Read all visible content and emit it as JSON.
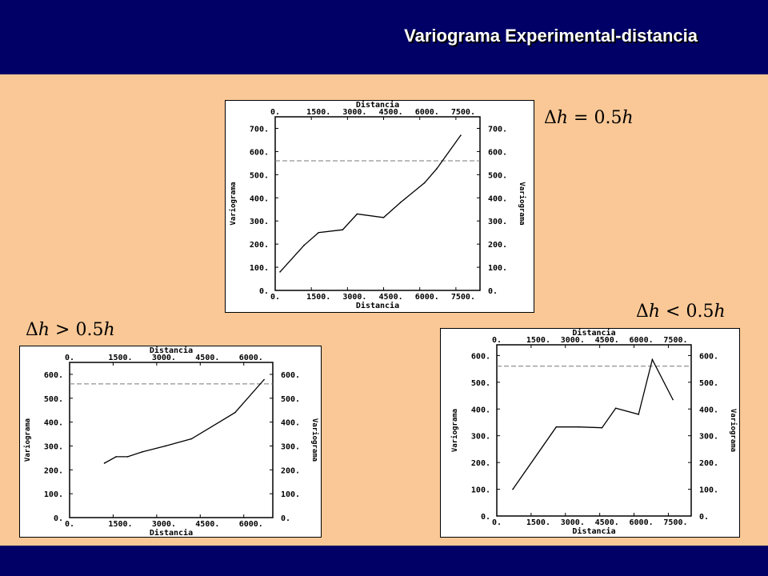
{
  "header": {
    "title": "Variograma Experimental-distancia"
  },
  "annotations": {
    "top": {
      "delta": "Δ",
      "h1": "h",
      "op": " = 0.5",
      "h2": "h"
    },
    "left": {
      "delta": "Δ",
      "h1": "h",
      "op": " > 0.5",
      "h2": "h"
    },
    "right": {
      "delta": "Δ",
      "h1": "h",
      "op": " < 0.5",
      "h2": "h"
    }
  },
  "colors": {
    "header_bg": "#000066",
    "page_bg": "#f9c896",
    "line": "#000000",
    "sill": "#777777"
  },
  "chart_data": [
    {
      "type": "line",
      "xlabel": "Distancia",
      "ylabel": "Variograma",
      "xticks": [
        0,
        1500,
        3000,
        4500,
        6000,
        7500
      ],
      "xtick_labels": [
        "0.",
        "1500.",
        "3000.",
        "4500.",
        "6000.",
        "7500."
      ],
      "yticks": [
        0,
        100,
        200,
        300,
        400,
        500,
        600,
        700
      ],
      "ytick_labels": [
        "0.",
        "100.",
        "200.",
        "300.",
        "400.",
        "500.",
        "600.",
        "700."
      ],
      "xlim": [
        0,
        8500
      ],
      "ylim": [
        0,
        750
      ],
      "sill": 560,
      "x": [
        200,
        1200,
        1800,
        2800,
        3400,
        4500,
        5200,
        6200,
        6700,
        7700
      ],
      "y": [
        80,
        195,
        250,
        262,
        330,
        315,
        380,
        465,
        525,
        670
      ]
    },
    {
      "type": "line",
      "xlabel": "Distancia",
      "ylabel": "Variograma",
      "xticks": [
        0,
        1500,
        3000,
        4500,
        6000
      ],
      "xtick_labels": [
        "0.",
        "1500.",
        "3000.",
        "4500.",
        "6000."
      ],
      "yticks": [
        0,
        100,
        200,
        300,
        400,
        500,
        600
      ],
      "ytick_labels": [
        "0.",
        "100.",
        "200.",
        "300.",
        "400.",
        "500.",
        "600."
      ],
      "xlim": [
        0,
        7000
      ],
      "ylim": [
        0,
        650
      ],
      "sill": 560,
      "x": [
        1200,
        1600,
        2000,
        2500,
        3300,
        4200,
        5700,
        6700
      ],
      "y": [
        228,
        255,
        255,
        275,
        300,
        330,
        440,
        578
      ]
    },
    {
      "type": "line",
      "xlabel": "Distancia",
      "ylabel": "Variograma",
      "xticks": [
        0,
        1500,
        3000,
        4500,
        6000,
        7500
      ],
      "xtick_labels": [
        "0.",
        "1500.",
        "3000.",
        "4500.",
        "6000.",
        "7500."
      ],
      "yticks": [
        0,
        100,
        200,
        300,
        400,
        500,
        600
      ],
      "ytick_labels": [
        "0.",
        "100.",
        "200.",
        "300.",
        "400.",
        "500.",
        "600."
      ],
      "xlim": [
        0,
        8500
      ],
      "ylim": [
        0,
        640
      ],
      "sill": 560,
      "x": [
        700,
        2600,
        3600,
        4600,
        5200,
        6200,
        6800,
        7700
      ],
      "y": [
        100,
        333,
        333,
        330,
        403,
        380,
        585,
        435
      ]
    }
  ]
}
